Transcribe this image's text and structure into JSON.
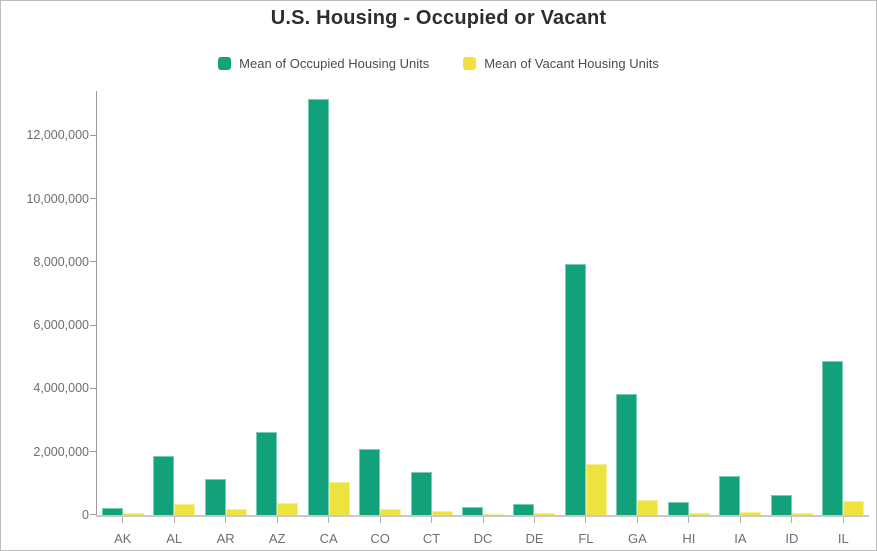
{
  "title": "U.S. Housing - Occupied or Vacant",
  "chart_data": {
    "type": "bar",
    "title": "U.S. Housing - Occupied or Vacant",
    "categories": [
      "AK",
      "AL",
      "AR",
      "AZ",
      "CA",
      "CO",
      "CT",
      "DC",
      "DE",
      "FL",
      "GA",
      "HI",
      "IA",
      "ID",
      "IL"
    ],
    "series": [
      {
        "name": "Mean of Occupied Housing Units",
        "color": "#11A17B",
        "values": [
          220000,
          1850000,
          1140000,
          2620000,
          13150000,
          2090000,
          1350000,
          250000,
          340000,
          7940000,
          3810000,
          420000,
          1240000,
          620000,
          4860000
        ]
      },
      {
        "name": "Mean of Vacant Housing Units",
        "color": "#EDE23E",
        "values": [
          60000,
          340000,
          180000,
          380000,
          1050000,
          200000,
          130000,
          30000,
          60000,
          1600000,
          460000,
          60000,
          110000,
          60000,
          450000
        ]
      }
    ],
    "xlabel": "",
    "ylabel": "",
    "ylim": [
      0,
      13400000
    ],
    "y_ticks": [
      0,
      2000000,
      4000000,
      6000000,
      8000000,
      10000000,
      12000000
    ],
    "y_tick_labels": [
      "0",
      "2,000,000",
      "4,000,000",
      "6,000,000",
      "8,000,000",
      "10,000,000",
      "12,000,000"
    ],
    "grid": false,
    "legend_position": "top"
  },
  "colors": {
    "occupied": "#11A17B",
    "vacant": "#EDE23E",
    "title_text": "#2E2E2E",
    "legend_text": "#4C4C4C",
    "axis_text": "#6E6E6E",
    "axis_line": "#9B9B9B",
    "baseline": "#C9C9C9",
    "border": "#BDBDBD",
    "background": "#FFFFFF"
  }
}
